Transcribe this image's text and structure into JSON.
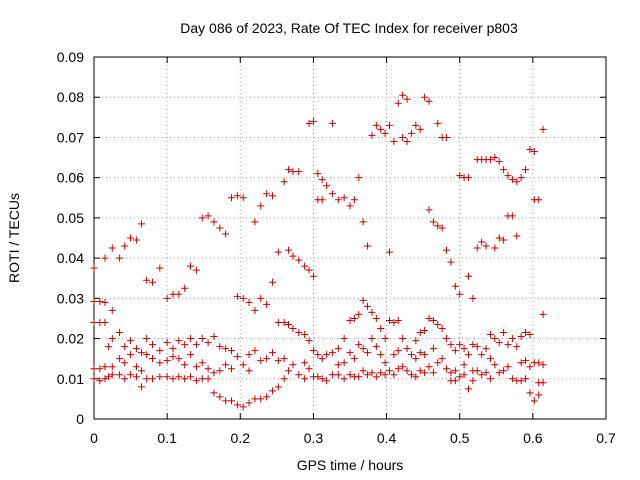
{
  "chart_data": {
    "type": "scatter",
    "title": "Day 086 of 2023, Rate Of TEC Index for receiver p803",
    "xlabel": "GPS time / hours",
    "ylabel": "ROTI / TECUs",
    "xlim": [
      0,
      0.7
    ],
    "ylim": [
      0,
      0.09
    ],
    "x_ticks": [
      "0",
      "0.1",
      "0.2",
      "0.3",
      "0.4",
      "0.5",
      "0.6",
      "0.7"
    ],
    "y_ticks": [
      "0",
      "0.01",
      "0.02",
      "0.03",
      "0.04",
      "0.05",
      "0.06",
      "0.07",
      "0.08",
      "0.09"
    ],
    "x_tick_values": [
      0,
      0.1,
      0.2,
      0.3,
      0.4,
      0.5,
      0.6,
      0.7
    ],
    "y_tick_values": [
      0,
      0.01,
      0.02,
      0.03,
      0.04,
      0.05,
      0.06,
      0.07,
      0.08,
      0.09
    ],
    "grid": true,
    "marker": "+",
    "color": "#cc0000",
    "points": [
      [
        0.0,
        0.0375
      ],
      [
        0.0,
        0.0292
      ],
      [
        0.0,
        0.024
      ],
      [
        0.0,
        0.0125
      ],
      [
        0.0,
        0.01
      ],
      [
        0.008,
        0.0292
      ],
      [
        0.008,
        0.024
      ],
      [
        0.008,
        0.0125
      ],
      [
        0.008,
        0.0095
      ],
      [
        0.015,
        0.04
      ],
      [
        0.015,
        0.029
      ],
      [
        0.015,
        0.024
      ],
      [
        0.015,
        0.013
      ],
      [
        0.015,
        0.01
      ],
      [
        0.02,
        0.018
      ],
      [
        0.02,
        0.0105
      ],
      [
        0.025,
        0.0425
      ],
      [
        0.025,
        0.027
      ],
      [
        0.025,
        0.02
      ],
      [
        0.025,
        0.013
      ],
      [
        0.025,
        0.011
      ],
      [
        0.035,
        0.04
      ],
      [
        0.035,
        0.0215
      ],
      [
        0.035,
        0.015
      ],
      [
        0.035,
        0.011
      ],
      [
        0.042,
        0.043
      ],
      [
        0.042,
        0.018
      ],
      [
        0.042,
        0.014
      ],
      [
        0.042,
        0.01
      ],
      [
        0.05,
        0.045
      ],
      [
        0.05,
        0.0195
      ],
      [
        0.05,
        0.016
      ],
      [
        0.05,
        0.011
      ],
      [
        0.058,
        0.0445
      ],
      [
        0.058,
        0.0175
      ],
      [
        0.058,
        0.013
      ],
      [
        0.058,
        0.0105
      ],
      [
        0.065,
        0.0485
      ],
      [
        0.065,
        0.0165
      ],
      [
        0.065,
        0.012
      ],
      [
        0.065,
        0.008
      ],
      [
        0.072,
        0.0345
      ],
      [
        0.072,
        0.02
      ],
      [
        0.072,
        0.016
      ],
      [
        0.072,
        0.01
      ],
      [
        0.08,
        0.034
      ],
      [
        0.08,
        0.0185
      ],
      [
        0.08,
        0.015
      ],
      [
        0.08,
        0.01
      ],
      [
        0.09,
        0.0375
      ],
      [
        0.09,
        0.017
      ],
      [
        0.09,
        0.014
      ],
      [
        0.09,
        0.0105
      ],
      [
        0.1,
        0.03
      ],
      [
        0.1,
        0.019
      ],
      [
        0.1,
        0.0145
      ],
      [
        0.1,
        0.0105
      ],
      [
        0.108,
        0.031
      ],
      [
        0.108,
        0.0175
      ],
      [
        0.108,
        0.0155
      ],
      [
        0.108,
        0.01
      ],
      [
        0.116,
        0.031
      ],
      [
        0.116,
        0.0195
      ],
      [
        0.116,
        0.015
      ],
      [
        0.116,
        0.0105
      ],
      [
        0.124,
        0.0325
      ],
      [
        0.124,
        0.0185
      ],
      [
        0.124,
        0.0135
      ],
      [
        0.124,
        0.01
      ],
      [
        0.132,
        0.038
      ],
      [
        0.132,
        0.02
      ],
      [
        0.132,
        0.016
      ],
      [
        0.132,
        0.0105
      ],
      [
        0.14,
        0.037
      ],
      [
        0.14,
        0.0185
      ],
      [
        0.14,
        0.013
      ],
      [
        0.14,
        0.0095
      ],
      [
        0.148,
        0.05
      ],
      [
        0.148,
        0.02
      ],
      [
        0.148,
        0.014
      ],
      [
        0.148,
        0.01
      ],
      [
        0.156,
        0.0505
      ],
      [
        0.156,
        0.019
      ],
      [
        0.156,
        0.0125
      ],
      [
        0.156,
        0.01
      ],
      [
        0.164,
        0.049
      ],
      [
        0.164,
        0.0205
      ],
      [
        0.164,
        0.0115
      ],
      [
        0.164,
        0.0065
      ],
      [
        0.172,
        0.0475
      ],
      [
        0.172,
        0.018
      ],
      [
        0.172,
        0.012
      ],
      [
        0.172,
        0.0055
      ],
      [
        0.18,
        0.046
      ],
      [
        0.18,
        0.0175
      ],
      [
        0.18,
        0.0135
      ],
      [
        0.18,
        0.0045
      ],
      [
        0.188,
        0.055
      ],
      [
        0.188,
        0.017
      ],
      [
        0.188,
        0.0125
      ],
      [
        0.188,
        0.0045
      ],
      [
        0.196,
        0.0555
      ],
      [
        0.196,
        0.0305
      ],
      [
        0.196,
        0.0155
      ],
      [
        0.196,
        0.0035
      ],
      [
        0.204,
        0.055
      ],
      [
        0.204,
        0.03
      ],
      [
        0.204,
        0.0135
      ],
      [
        0.204,
        0.003
      ],
      [
        0.212,
        0.029
      ],
      [
        0.212,
        0.016
      ],
      [
        0.212,
        0.012
      ],
      [
        0.212,
        0.004
      ],
      [
        0.22,
        0.049
      ],
      [
        0.22,
        0.027
      ],
      [
        0.22,
        0.017
      ],
      [
        0.22,
        0.005
      ],
      [
        0.228,
        0.053
      ],
      [
        0.228,
        0.03
      ],
      [
        0.228,
        0.0145
      ],
      [
        0.228,
        0.005
      ],
      [
        0.236,
        0.056
      ],
      [
        0.236,
        0.0285
      ],
      [
        0.236,
        0.015
      ],
      [
        0.236,
        0.0055
      ],
      [
        0.244,
        0.0555
      ],
      [
        0.244,
        0.034
      ],
      [
        0.244,
        0.0165
      ],
      [
        0.244,
        0.007
      ],
      [
        0.252,
        0.0415
      ],
      [
        0.252,
        0.024
      ],
      [
        0.252,
        0.0145
      ],
      [
        0.252,
        0.008
      ],
      [
        0.26,
        0.059
      ],
      [
        0.26,
        0.024
      ],
      [
        0.26,
        0.015
      ],
      [
        0.26,
        0.01
      ],
      [
        0.266,
        0.062
      ],
      [
        0.266,
        0.042
      ],
      [
        0.266,
        0.0235
      ],
      [
        0.266,
        0.012
      ],
      [
        0.272,
        0.0615
      ],
      [
        0.272,
        0.0405
      ],
      [
        0.272,
        0.0225
      ],
      [
        0.272,
        0.0135
      ],
      [
        0.28,
        0.0615
      ],
      [
        0.28,
        0.0395
      ],
      [
        0.28,
        0.0215
      ],
      [
        0.28,
        0.011
      ],
      [
        0.288,
        0.038
      ],
      [
        0.288,
        0.021
      ],
      [
        0.288,
        0.014
      ],
      [
        0.288,
        0.01
      ],
      [
        0.294,
        0.0735
      ],
      [
        0.294,
        0.037
      ],
      [
        0.294,
        0.0195
      ],
      [
        0.294,
        0.0125
      ],
      [
        0.3,
        0.074
      ],
      [
        0.3,
        0.0355
      ],
      [
        0.3,
        0.017
      ],
      [
        0.3,
        0.0105
      ],
      [
        0.306,
        0.061
      ],
      [
        0.306,
        0.0545
      ],
      [
        0.306,
        0.016
      ],
      [
        0.306,
        0.0105
      ],
      [
        0.312,
        0.0595
      ],
      [
        0.312,
        0.0545
      ],
      [
        0.312,
        0.015
      ],
      [
        0.312,
        0.01
      ],
      [
        0.318,
        0.058
      ],
      [
        0.318,
        0.016
      ],
      [
        0.318,
        0.0095
      ],
      [
        0.326,
        0.0735
      ],
      [
        0.326,
        0.056
      ],
      [
        0.326,
        0.0165
      ],
      [
        0.326,
        0.011
      ],
      [
        0.334,
        0.0545
      ],
      [
        0.334,
        0.0175
      ],
      [
        0.334,
        0.0135
      ],
      [
        0.334,
        0.011
      ],
      [
        0.342,
        0.055
      ],
      [
        0.342,
        0.02
      ],
      [
        0.342,
        0.014
      ],
      [
        0.342,
        0.01
      ],
      [
        0.35,
        0.053
      ],
      [
        0.35,
        0.0245
      ],
      [
        0.35,
        0.0165
      ],
      [
        0.35,
        0.011
      ],
      [
        0.356,
        0.0545
      ],
      [
        0.356,
        0.025
      ],
      [
        0.356,
        0.015
      ],
      [
        0.356,
        0.0105
      ],
      [
        0.362,
        0.06
      ],
      [
        0.362,
        0.026
      ],
      [
        0.362,
        0.0185
      ],
      [
        0.362,
        0.0105
      ],
      [
        0.368,
        0.049
      ],
      [
        0.368,
        0.0295
      ],
      [
        0.368,
        0.0175
      ],
      [
        0.368,
        0.012
      ],
      [
        0.374,
        0.043
      ],
      [
        0.374,
        0.028
      ],
      [
        0.374,
        0.0165
      ],
      [
        0.374,
        0.011
      ],
      [
        0.38,
        0.0705
      ],
      [
        0.38,
        0.0265
      ],
      [
        0.38,
        0.02
      ],
      [
        0.38,
        0.0115
      ],
      [
        0.386,
        0.073
      ],
      [
        0.386,
        0.025
      ],
      [
        0.386,
        0.018
      ],
      [
        0.386,
        0.0105
      ],
      [
        0.392,
        0.072
      ],
      [
        0.392,
        0.0225
      ],
      [
        0.392,
        0.016
      ],
      [
        0.392,
        0.0115
      ],
      [
        0.398,
        0.071
      ],
      [
        0.398,
        0.02
      ],
      [
        0.398,
        0.014
      ],
      [
        0.398,
        0.011
      ],
      [
        0.404,
        0.073
      ],
      [
        0.404,
        0.0415
      ],
      [
        0.404,
        0.0245
      ],
      [
        0.404,
        0.012
      ],
      [
        0.41,
        0.069
      ],
      [
        0.41,
        0.024
      ],
      [
        0.41,
        0.016
      ],
      [
        0.41,
        0.011
      ],
      [
        0.416,
        0.0785
      ],
      [
        0.416,
        0.0245
      ],
      [
        0.416,
        0.017
      ],
      [
        0.416,
        0.0125
      ],
      [
        0.422,
        0.0805
      ],
      [
        0.422,
        0.07
      ],
      [
        0.422,
        0.02
      ],
      [
        0.422,
        0.013
      ],
      [
        0.428,
        0.0795
      ],
      [
        0.428,
        0.069
      ],
      [
        0.428,
        0.0175
      ],
      [
        0.428,
        0.012
      ],
      [
        0.434,
        0.071
      ],
      [
        0.434,
        0.016
      ],
      [
        0.434,
        0.011
      ],
      [
        0.44,
        0.073
      ],
      [
        0.44,
        0.0195
      ],
      [
        0.44,
        0.015
      ],
      [
        0.44,
        0.0105
      ],
      [
        0.446,
        0.072
      ],
      [
        0.446,
        0.0215
      ],
      [
        0.446,
        0.0165
      ],
      [
        0.446,
        0.012
      ],
      [
        0.452,
        0.08
      ],
      [
        0.452,
        0.022
      ],
      [
        0.452,
        0.016
      ],
      [
        0.452,
        0.0115
      ],
      [
        0.458,
        0.079
      ],
      [
        0.458,
        0.052
      ],
      [
        0.458,
        0.025
      ],
      [
        0.458,
        0.013
      ],
      [
        0.464,
        0.049
      ],
      [
        0.464,
        0.0245
      ],
      [
        0.464,
        0.0175
      ],
      [
        0.464,
        0.0115
      ],
      [
        0.47,
        0.0735
      ],
      [
        0.47,
        0.048
      ],
      [
        0.47,
        0.0235
      ],
      [
        0.47,
        0.014
      ],
      [
        0.476,
        0.07
      ],
      [
        0.476,
        0.0475
      ],
      [
        0.476,
        0.0225
      ],
      [
        0.476,
        0.015
      ],
      [
        0.482,
        0.07
      ],
      [
        0.482,
        0.042
      ],
      [
        0.482,
        0.02
      ],
      [
        0.482,
        0.0125
      ],
      [
        0.488,
        0.039
      ],
      [
        0.488,
        0.0185
      ],
      [
        0.488,
        0.0115
      ],
      [
        0.488,
        0.0095
      ],
      [
        0.494,
        0.033
      ],
      [
        0.494,
        0.017
      ],
      [
        0.494,
        0.012
      ],
      [
        0.494,
        0.0095
      ],
      [
        0.5,
        0.0605
      ],
      [
        0.5,
        0.031
      ],
      [
        0.5,
        0.0185
      ],
      [
        0.5,
        0.0105
      ],
      [
        0.506,
        0.06
      ],
      [
        0.506,
        0.0175
      ],
      [
        0.506,
        0.0135
      ],
      [
        0.506,
        0.011
      ],
      [
        0.512,
        0.06
      ],
      [
        0.512,
        0.0355
      ],
      [
        0.512,
        0.016
      ],
      [
        0.512,
        0.0075
      ],
      [
        0.518,
        0.03
      ],
      [
        0.518,
        0.0185
      ],
      [
        0.518,
        0.012
      ],
      [
        0.518,
        0.0095
      ],
      [
        0.524,
        0.0645
      ],
      [
        0.524,
        0.0425
      ],
      [
        0.524,
        0.018
      ],
      [
        0.524,
        0.012
      ],
      [
        0.53,
        0.0645
      ],
      [
        0.53,
        0.044
      ],
      [
        0.53,
        0.016
      ],
      [
        0.53,
        0.011
      ],
      [
        0.536,
        0.0645
      ],
      [
        0.536,
        0.043
      ],
      [
        0.536,
        0.0175
      ],
      [
        0.536,
        0.0115
      ],
      [
        0.542,
        0.0645
      ],
      [
        0.542,
        0.021
      ],
      [
        0.542,
        0.015
      ],
      [
        0.542,
        0.01
      ],
      [
        0.548,
        0.065
      ],
      [
        0.548,
        0.0425
      ],
      [
        0.548,
        0.02
      ],
      [
        0.548,
        0.0135
      ],
      [
        0.554,
        0.064
      ],
      [
        0.554,
        0.045
      ],
      [
        0.554,
        0.019
      ],
      [
        0.554,
        0.0115
      ],
      [
        0.56,
        0.062
      ],
      [
        0.56,
        0.0445
      ],
      [
        0.56,
        0.0215
      ],
      [
        0.56,
        0.012
      ],
      [
        0.566,
        0.0605
      ],
      [
        0.566,
        0.0505
      ],
      [
        0.566,
        0.0185
      ],
      [
        0.566,
        0.013
      ],
      [
        0.572,
        0.0595
      ],
      [
        0.572,
        0.0505
      ],
      [
        0.572,
        0.02
      ],
      [
        0.572,
        0.01
      ],
      [
        0.578,
        0.059
      ],
      [
        0.578,
        0.0455
      ],
      [
        0.578,
        0.018
      ],
      [
        0.578,
        0.0095
      ],
      [
        0.584,
        0.06
      ],
      [
        0.584,
        0.0205
      ],
      [
        0.584,
        0.014
      ],
      [
        0.584,
        0.0095
      ],
      [
        0.59,
        0.062
      ],
      [
        0.59,
        0.0215
      ],
      [
        0.59,
        0.0145
      ],
      [
        0.59,
        0.01
      ],
      [
        0.596,
        0.067
      ],
      [
        0.596,
        0.021
      ],
      [
        0.596,
        0.013
      ],
      [
        0.596,
        0.0065
      ],
      [
        0.602,
        0.0665
      ],
      [
        0.602,
        0.0545
      ],
      [
        0.602,
        0.014
      ],
      [
        0.602,
        0.0045
      ],
      [
        0.608,
        0.0545
      ],
      [
        0.608,
        0.014
      ],
      [
        0.608,
        0.009
      ],
      [
        0.608,
        0.006
      ],
      [
        0.614,
        0.072
      ],
      [
        0.614,
        0.026
      ],
      [
        0.614,
        0.0135
      ],
      [
        0.614,
        0.009
      ]
    ]
  }
}
